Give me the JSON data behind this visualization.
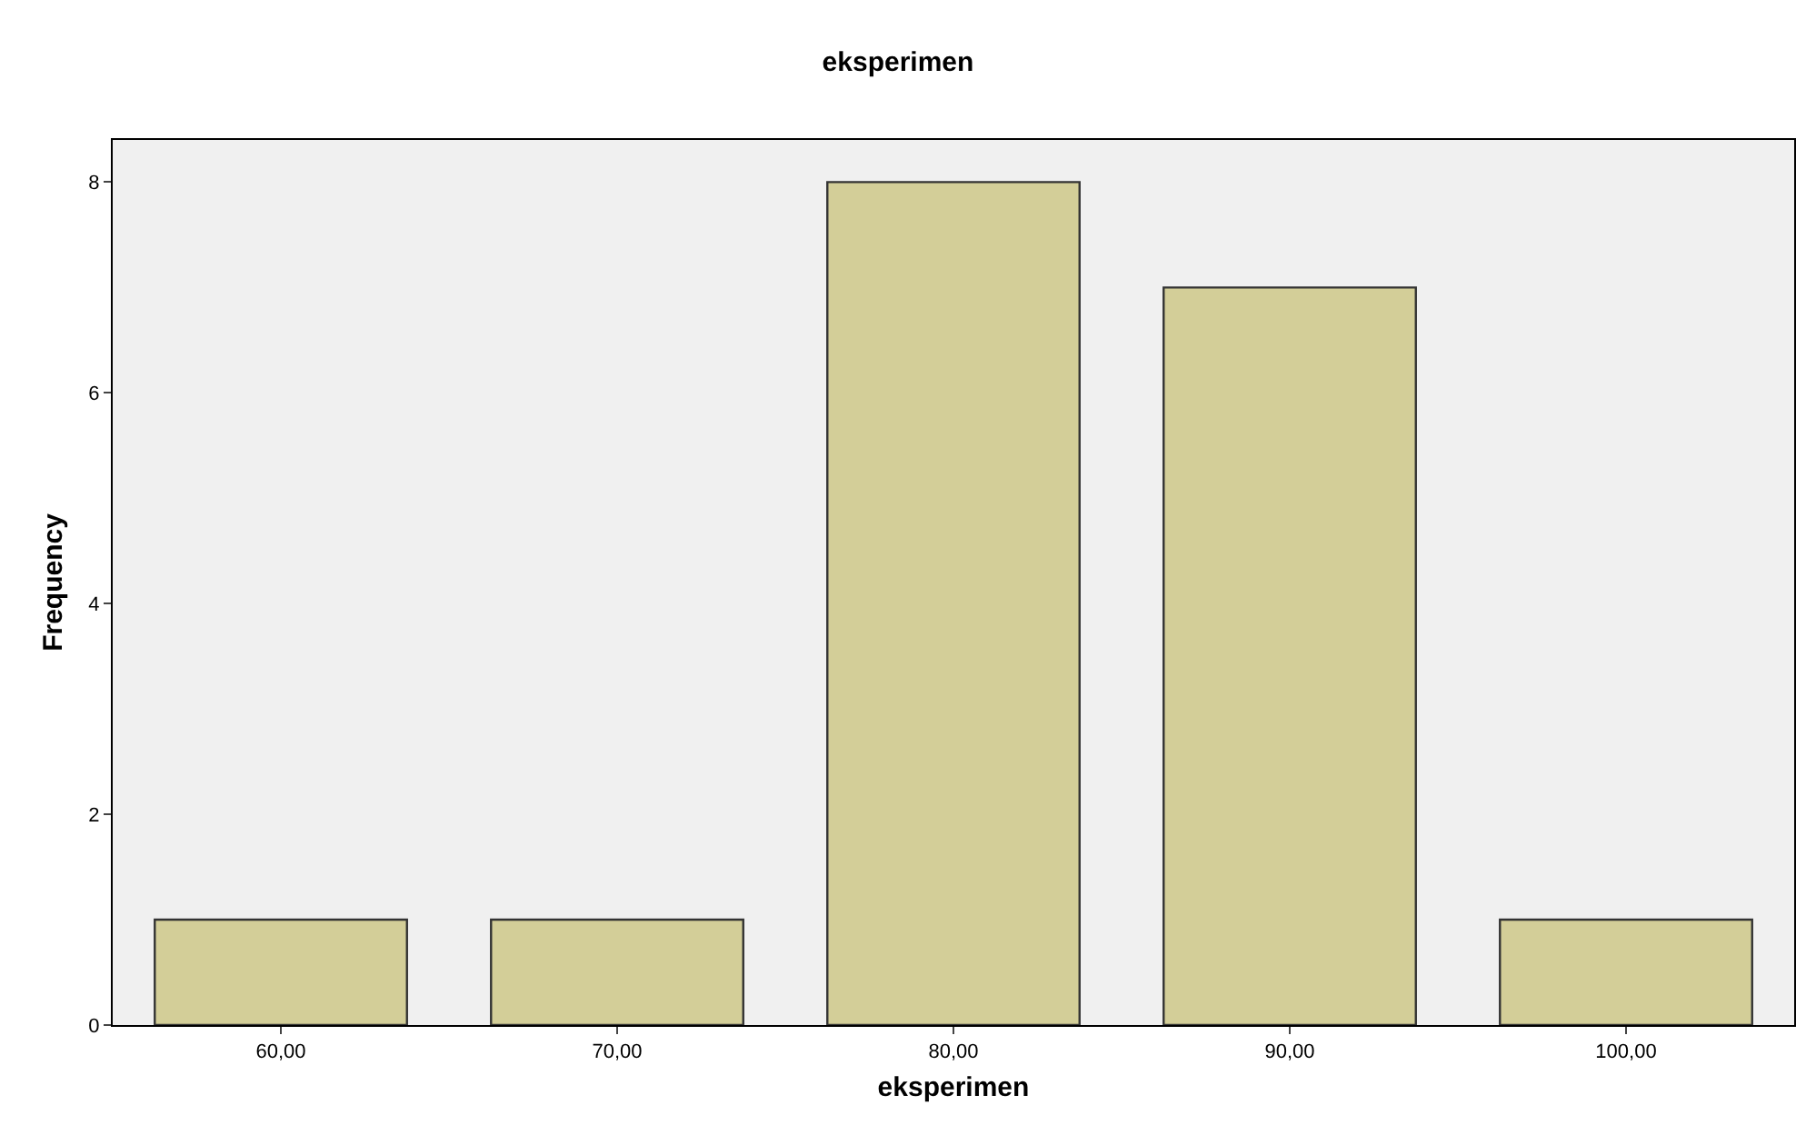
{
  "chart_data": {
    "type": "bar",
    "title": "eksperimen",
    "xlabel": "eksperimen",
    "ylabel": "Frequency",
    "categories": [
      "60,00",
      "70,00",
      "80,00",
      "90,00",
      "100,00"
    ],
    "values": [
      1,
      1,
      8,
      7,
      1
    ],
    "color": "#d3ce98",
    "ylim": [
      0,
      8.4
    ],
    "yticks": [
      0,
      2,
      4,
      6,
      8
    ],
    "grid": false
  }
}
